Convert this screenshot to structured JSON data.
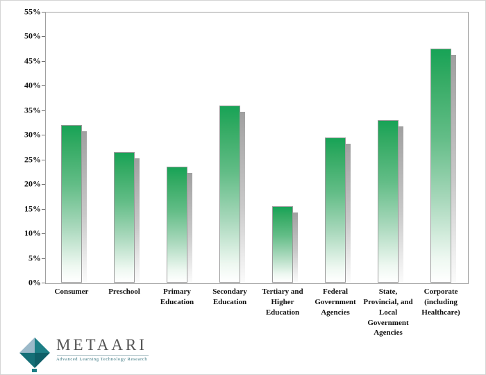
{
  "chart_data": {
    "type": "bar",
    "title": "",
    "xlabel": "",
    "ylabel": "",
    "categories": [
      "Consumer",
      "Preschool",
      "Primary Education",
      "Secondary Education",
      "Tertiary and Higher Education",
      "Federal Government Agencies",
      "State, Provincial, and Local Government Agencies",
      "Corporate (including Healthcare)"
    ],
    "values": [
      32,
      26.5,
      23.5,
      36,
      15.5,
      29.5,
      33,
      47.5
    ],
    "ylim": [
      0,
      55
    ],
    "ytick_step": 5,
    "ytick_labels": [
      "0%",
      "5%",
      "10%",
      "15%",
      "20%",
      "25%",
      "30%",
      "35%",
      "40%",
      "45%",
      "50%",
      "55%"
    ],
    "grid": "off",
    "legend": "none",
    "bar_color_top": "#17a356",
    "bar_color_bottom": "#ffffff",
    "shadow_color": "#a0a0a0"
  },
  "branding": {
    "logo_text": "METAARI",
    "tagline": "Advanced Learning Technology Research",
    "icon_teal": "#1d7f86",
    "icon_dark_teal": "#0f5f68",
    "icon_gray": "#9bb9c9"
  }
}
